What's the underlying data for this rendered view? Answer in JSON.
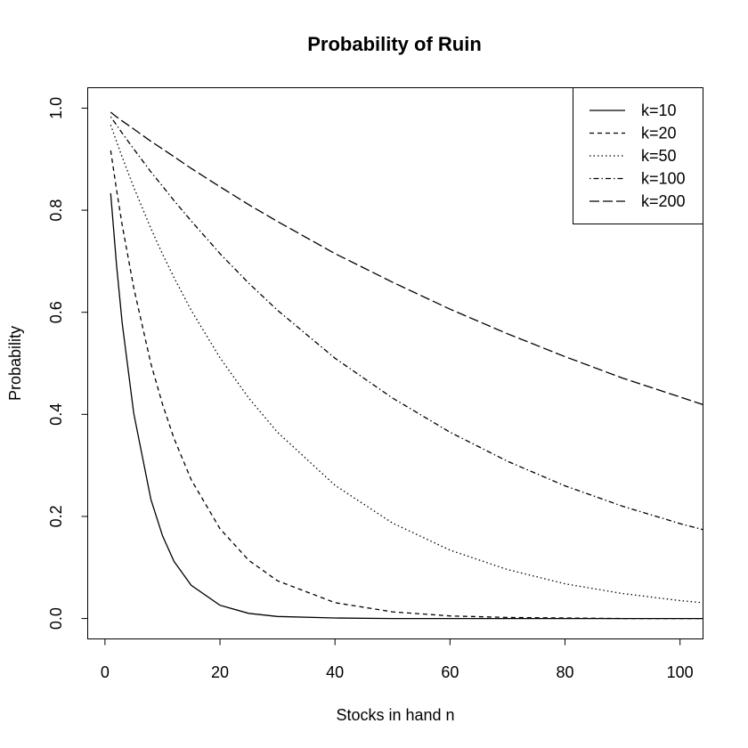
{
  "chart_data": {
    "type": "line",
    "title": "Probability of Ruin",
    "xlabel": "Stocks in hand n",
    "ylabel": "Probability",
    "xlim": [
      -3,
      104
    ],
    "ylim": [
      -0.04,
      1.04
    ],
    "x_ticks": [
      0,
      20,
      40,
      60,
      80,
      100
    ],
    "x_tick_labels": [
      "0",
      "20",
      "40",
      "60",
      "80",
      "100"
    ],
    "y_ticks": [
      0.0,
      0.2,
      0.4,
      0.6,
      0.8,
      1.0
    ],
    "y_tick_labels": [
      "0.0",
      "0.2",
      "0.4",
      "0.6",
      "0.8",
      "1.0"
    ],
    "grid": false,
    "legend_position": "top-right",
    "x": [
      1,
      2,
      3,
      5,
      8,
      10,
      12,
      15,
      20,
      25,
      30,
      40,
      50,
      60,
      70,
      80,
      90,
      100,
      104
    ],
    "series": [
      {
        "name": "k=10",
        "line_style": "solid",
        "values": [
          0.833,
          0.694,
          0.579,
          0.402,
          0.233,
          0.162,
          0.112,
          0.065,
          0.026,
          0.01,
          0.004,
          0.001,
          0.0,
          0.0,
          0.0,
          0.0,
          0.0,
          0.0,
          0.0
        ]
      },
      {
        "name": "k=20",
        "line_style": "dashed",
        "values": [
          0.917,
          0.841,
          0.771,
          0.648,
          0.499,
          0.42,
          0.353,
          0.272,
          0.176,
          0.114,
          0.074,
          0.031,
          0.013,
          0.005,
          0.002,
          0.001,
          0.0,
          0.0,
          0.0
        ]
      },
      {
        "name": "k=50",
        "line_style": "dotted",
        "values": [
          0.967,
          0.935,
          0.904,
          0.845,
          0.764,
          0.714,
          0.668,
          0.604,
          0.511,
          0.432,
          0.365,
          0.261,
          0.187,
          0.134,
          0.096,
          0.068,
          0.049,
          0.035,
          0.031
        ]
      },
      {
        "name": "k=100",
        "line_style": "dotdash",
        "values": [
          0.983,
          0.967,
          0.951,
          0.92,
          0.875,
          0.847,
          0.819,
          0.779,
          0.715,
          0.657,
          0.604,
          0.51,
          0.432,
          0.365,
          0.308,
          0.26,
          0.22,
          0.186,
          0.174
        ]
      },
      {
        "name": "k=200",
        "line_style": "longdash",
        "values": [
          0.992,
          0.983,
          0.975,
          0.959,
          0.935,
          0.92,
          0.905,
          0.882,
          0.846,
          0.811,
          0.778,
          0.715,
          0.659,
          0.606,
          0.558,
          0.513,
          0.471,
          0.434,
          0.419
        ]
      }
    ]
  }
}
